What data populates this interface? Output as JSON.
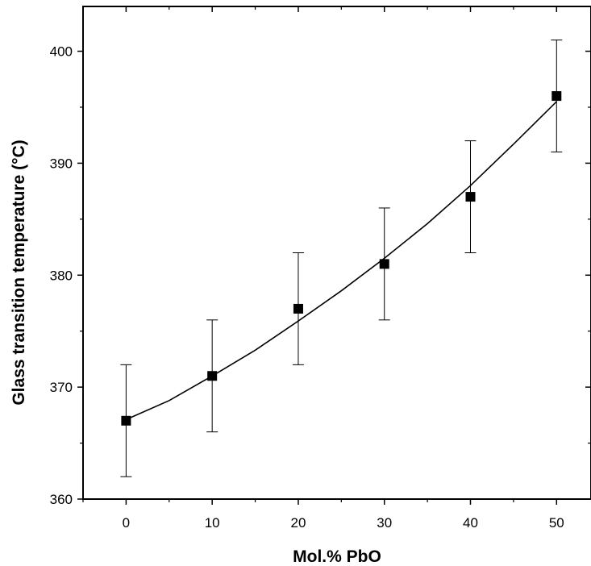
{
  "chart_data": {
    "type": "scatter",
    "title": "",
    "xlabel": "Mol.% PbO",
    "ylabel": "Glass transition temperature (°C)",
    "xlim": [
      -5,
      54
    ],
    "ylim": [
      360,
      404
    ],
    "x_ticks": [
      0,
      10,
      20,
      30,
      40,
      50
    ],
    "y_ticks": [
      360,
      370,
      380,
      390,
      400
    ],
    "grid": false,
    "legend": "none",
    "series": [
      {
        "x": [
          0,
          10,
          20,
          30,
          40,
          50
        ],
        "y": [
          367,
          371,
          377,
          381,
          387,
          396
        ],
        "error": [
          5,
          5,
          5,
          5,
          5,
          5
        ],
        "marker": "square",
        "color": "#000000"
      }
    ],
    "fit_curve": {
      "x": [
        0,
        5,
        10,
        15,
        20,
        25,
        30,
        35,
        40,
        45,
        50
      ],
      "y": [
        367.1,
        368.8,
        371.0,
        373.3,
        375.9,
        378.6,
        381.5,
        384.6,
        388.0,
        391.7,
        395.5
      ]
    }
  }
}
